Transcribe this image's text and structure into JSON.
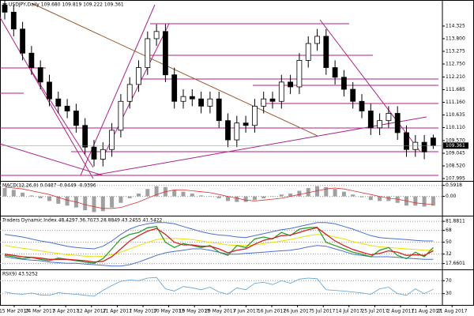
{
  "chart_data": [
    {
      "type": "candlestick",
      "title": "USDJPY,Daily 109.680 109.819 109.222 109.361",
      "open": [
        115.2,
        114.9,
        114.2,
        113.2,
        112.6,
        112.0,
        111.3,
        111.0,
        110.8,
        110.2,
        109.3,
        108.8,
        109.2,
        110.0,
        111.2,
        111.9,
        112.6,
        113.8,
        114.1,
        112.3,
        111.2,
        111.4,
        111.3,
        111.0,
        111.3,
        110.4,
        109.6,
        110.3,
        110.2,
        111.0,
        111.3,
        111.2,
        112.0,
        111.8,
        112.9,
        113.6,
        113.9,
        112.6,
        112.2,
        111.7,
        111.2,
        110.8,
        110.1,
        110.4,
        110.7,
        109.9,
        109.2,
        109.5,
        109.68
      ],
      "high": [
        115.5,
        115.2,
        114.5,
        113.5,
        112.9,
        112.3,
        111.6,
        111.3,
        111.1,
        110.5,
        109.6,
        109.5,
        110.3,
        111.5,
        112.2,
        112.9,
        114.1,
        114.4,
        114.4,
        112.6,
        111.7,
        111.7,
        111.6,
        111.6,
        111.6,
        110.7,
        110.6,
        110.6,
        111.3,
        111.6,
        111.6,
        112.3,
        112.3,
        113.2,
        113.9,
        114.2,
        114.2,
        112.9,
        112.5,
        112.0,
        111.5,
        111.1,
        110.7,
        111.0,
        111.0,
        110.2,
        109.8,
        109.8,
        109.819
      ],
      "low": [
        114.6,
        113.9,
        112.9,
        112.3,
        111.7,
        111.0,
        110.7,
        110.5,
        109.9,
        109.0,
        108.5,
        108.5,
        108.9,
        109.7,
        110.9,
        111.6,
        112.3,
        113.5,
        112.0,
        110.9,
        110.9,
        111.0,
        110.7,
        110.7,
        110.1,
        109.3,
        109.3,
        109.9,
        109.9,
        110.7,
        110.9,
        110.9,
        111.5,
        111.5,
        112.6,
        113.3,
        112.3,
        111.9,
        111.4,
        110.9,
        110.5,
        109.8,
        109.8,
        110.1,
        109.6,
        108.9,
        108.9,
        108.8,
        109.222
      ],
      "close": [
        114.9,
        114.2,
        113.2,
        112.6,
        112.0,
        111.3,
        111.0,
        110.8,
        110.2,
        109.3,
        108.8,
        109.2,
        110.0,
        111.2,
        111.9,
        112.6,
        113.8,
        114.1,
        112.3,
        111.2,
        111.4,
        111.3,
        111.0,
        111.3,
        110.4,
        109.6,
        110.3,
        110.2,
        111.0,
        111.3,
        111.2,
        112.0,
        111.8,
        112.9,
        113.6,
        113.9,
        112.6,
        112.2,
        111.7,
        111.2,
        110.8,
        110.1,
        110.4,
        110.7,
        109.9,
        109.2,
        109.5,
        109.1,
        109.361
      ],
      "ylim": [
        107.93,
        115.34
      ],
      "yticks": [
        114.325,
        {
          "value": 113.8,
          "label": "113.800"
        },
        113.275,
        {
          "value": 112.75,
          "label": "112.750"
        },
        {
          "value": 112.21,
          "label": "112.210"
        },
        111.685,
        {
          "value": 111.16,
          "label": "111.160"
        },
        110.635,
        {
          "value": 110.11,
          "label": "110.110"
        },
        {
          "value": 109.57,
          "label": "109.570"
        },
        109.045,
        {
          "value": 108.52,
          "label": "108.520"
        },
        107.995
      ]
    },
    {
      "type": "macd",
      "title": "MACD(12,26,9) 0.0487 -0.9449 -0.9396",
      "series": [
        {
          "color": "#a0a0a0",
          "values": [
            0.45,
            0.35,
            0.2,
            0.05,
            -0.1,
            -0.25,
            -0.4,
            -0.5,
            -0.6,
            -0.75,
            -0.85,
            -0.8,
            -0.6,
            -0.35,
            -0.1,
            0.15,
            0.4,
            0.55,
            0.5,
            0.35,
            0.25,
            0.15,
            0.05,
            0.0,
            -0.1,
            -0.25,
            -0.3,
            -0.3,
            -0.2,
            -0.1,
            0.0,
            0.1,
            0.15,
            0.3,
            0.45,
            0.55,
            0.5,
            0.4,
            0.25,
            0.1,
            -0.05,
            -0.2,
            -0.25,
            -0.25,
            -0.35,
            -0.5,
            -0.5,
            -0.55,
            -0.5
          ]
        },
        {
          "color": "#e03030",
          "values": [
            0.5,
            0.45,
            0.4,
            0.3,
            0.2,
            0.1,
            -0.05,
            -0.2,
            -0.3,
            -0.45,
            -0.55,
            -0.65,
            -0.65,
            -0.6,
            -0.45,
            -0.3,
            -0.1,
            0.1,
            0.25,
            0.35,
            0.35,
            0.3,
            0.25,
            0.2,
            0.1,
            0.0,
            -0.1,
            -0.2,
            -0.25,
            -0.2,
            -0.15,
            -0.1,
            0.0,
            0.1,
            0.2,
            0.3,
            0.4,
            0.45,
            0.4,
            0.3,
            0.2,
            0.1,
            0.0,
            -0.1,
            -0.15,
            -0.25,
            -0.35,
            -0.4,
            -0.45
          ]
        }
      ],
      "ylim": [
        -1.0,
        0.75
      ],
      "yticks": [
        0.5918,
        {
          "value": 0,
          "label": "0.00"
        }
      ]
    },
    {
      "type": "tdi",
      "title": "Traders Dynamic Index 48.4297 36.7073 28.8849 43.2455 41.5422",
      "series": [
        {
          "color": "#4b6fd0",
          "values": [
            62,
            60,
            58,
            55,
            52,
            50,
            47,
            44,
            42,
            41,
            40,
            44,
            52,
            62,
            70,
            75,
            78,
            80,
            80,
            78,
            74,
            70,
            66,
            63,
            61,
            60,
            58,
            57,
            60,
            63,
            66,
            69,
            71,
            74,
            77,
            80,
            80,
            78,
            74,
            70,
            65,
            60,
            57,
            56,
            55,
            54,
            53,
            52,
            52
          ]
        },
        {
          "color": "#4b6fd0",
          "values": [
            28,
            26,
            24,
            23,
            22,
            20,
            19,
            18,
            18,
            17,
            16,
            15,
            14,
            14,
            16,
            20,
            25,
            30,
            34,
            36,
            38,
            40,
            40,
            38,
            35,
            32,
            32,
            33,
            34,
            35,
            36,
            37,
            38,
            40,
            43,
            45,
            44,
            40,
            36,
            32,
            30,
            28,
            28,
            28,
            27,
            26,
            25,
            24,
            24
          ]
        },
        {
          "color": "#e8e000",
          "values": [
            45,
            43,
            41,
            39,
            37,
            35,
            33,
            31,
            30,
            29,
            28,
            29,
            31,
            35,
            40,
            45,
            50,
            54,
            56,
            56,
            55,
            54,
            52,
            50,
            48,
            46,
            45,
            45,
            46,
            48,
            50,
            52,
            54,
            57,
            60,
            62,
            61,
            58,
            55,
            51,
            48,
            45,
            43,
            42,
            41,
            40,
            39,
            38,
            38
          ]
        },
        {
          "color": "#2e9a2e",
          "values": [
            30,
            28,
            25,
            27,
            24,
            22,
            26,
            24,
            22,
            20,
            18,
            25,
            40,
            55,
            62,
            65,
            72,
            74,
            50,
            42,
            48,
            45,
            42,
            45,
            35,
            30,
            45,
            42,
            55,
            58,
            55,
            65,
            60,
            70,
            72,
            73,
            50,
            45,
            40,
            35,
            32,
            28,
            38,
            42,
            30,
            25,
            35,
            28,
            42
          ]
        },
        {
          "color": "#d42020",
          "values": [
            32,
            30,
            28,
            27,
            26,
            24,
            24,
            24,
            23,
            22,
            20,
            21,
            28,
            40,
            52,
            60,
            67,
            71,
            62,
            50,
            46,
            46,
            44,
            44,
            40,
            34,
            38,
            40,
            47,
            53,
            56,
            60,
            61,
            65,
            69,
            72,
            62,
            52,
            45,
            39,
            35,
            31,
            33,
            37,
            35,
            30,
            31,
            30,
            37
          ]
        }
      ],
      "ylim": [
        10,
        88
      ],
      "yticks": [
        81.8811,
        68,
        50,
        32,
        17.6601
      ]
    },
    {
      "type": "line",
      "title": "RSI(9) 43.5252",
      "series": [
        {
          "color": "#5aa0d8",
          "values": [
            35,
            30,
            28,
            32,
            26,
            25,
            33,
            30,
            28,
            25,
            22,
            40,
            55,
            68,
            72,
            70,
            78,
            80,
            45,
            38,
            52,
            48,
            42,
            50,
            35,
            28,
            48,
            42,
            62,
            65,
            58,
            70,
            62,
            75,
            78,
            76,
            42,
            40,
            38,
            35,
            32,
            28,
            45,
            50,
            30,
            25,
            45,
            30,
            43.5252
          ]
        }
      ],
      "ylim": [
        0,
        100
      ],
      "yticks": [
        70,
        30
      ],
      "x_axis_labels": [
        "15 Mar 2017",
        "24 Mar 2017",
        "3 Apr 2017",
        "12 Apr 2017",
        "21 Apr 2017",
        "1 May 2017",
        "10 May 2017",
        "19 May 2017",
        "29 May 2017",
        "7 Jun 2017",
        "16 Jun 2017",
        "26 Jun 2017",
        "5 Jul 2017",
        "14 Jul 2017",
        "25 Jul 2017",
        "2 Aug 2017",
        "11 Aug 2017",
        "21 Aug 2017"
      ]
    }
  ]
}
